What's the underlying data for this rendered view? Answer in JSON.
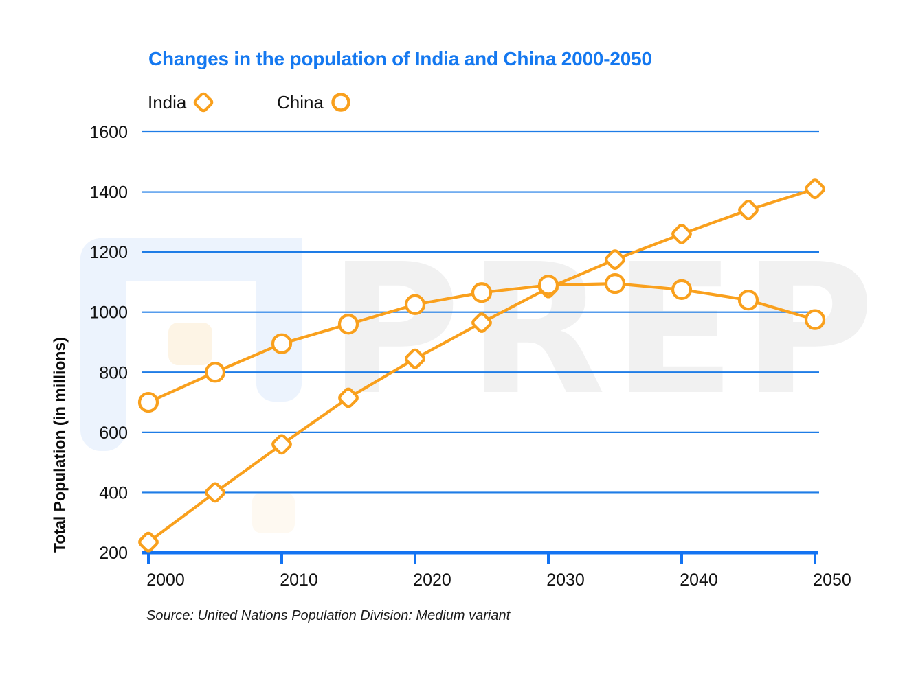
{
  "title": "Changes in the population of India and China 2000-2050",
  "y_axis_label": "Total Population (in millions)",
  "source": "Source: United Nations Population Division: Medium variant",
  "watermark": {
    "text": "PREP"
  },
  "colors": {
    "series_orange": "#F9A01D",
    "gridline_blue": "#1E7CE6",
    "axis_blue": "#1373F2",
    "title_blue": "#1478F0",
    "tick_text": "#111111",
    "watermark_gray": "#F1F1F1",
    "watermark_blue": "#ECF3FD",
    "watermark_cream": "#FDF4E5"
  },
  "chart_data": {
    "type": "line",
    "title": "Changes in the population of India and China 2000-2050",
    "xlabel": "",
    "ylabel": "Total Population (in millions)",
    "ylim": [
      200,
      1600
    ],
    "grid": "horizontal",
    "legend_position": "top-left",
    "x": [
      2000,
      2005,
      2010,
      2015,
      2020,
      2025,
      2030,
      2035,
      2040,
      2045,
      2050
    ],
    "x_ticks": [
      2000,
      2010,
      2020,
      2030,
      2040,
      2050
    ],
    "y_ticks": [
      200,
      400,
      600,
      800,
      1000,
      1200,
      1400,
      1600
    ],
    "series": [
      {
        "name": "India",
        "marker": "diamond",
        "values": [
          235,
          400,
          560,
          715,
          845,
          965,
          1080,
          1175,
          1260,
          1340,
          1410
        ]
      },
      {
        "name": "China",
        "marker": "circle",
        "values": [
          700,
          800,
          895,
          960,
          1025,
          1065,
          1090,
          1095,
          1075,
          1040,
          975
        ]
      }
    ]
  }
}
